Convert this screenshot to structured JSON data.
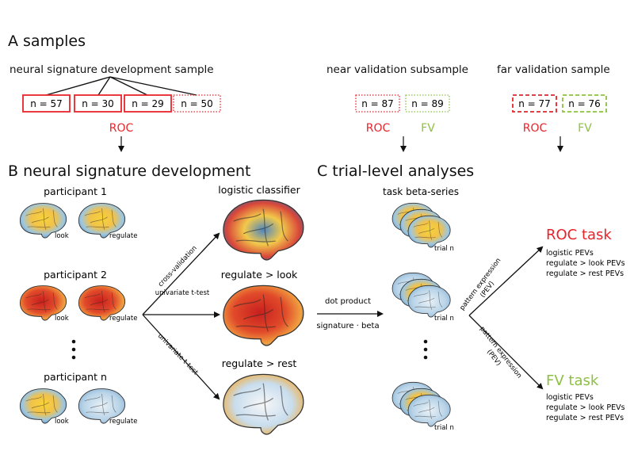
{
  "section_a": {
    "title": "A samples",
    "dev_label": "neural signature development sample",
    "dev_boxes": [
      "n = 57",
      "n = 30",
      "n = 29",
      "n = 50"
    ],
    "dev_task": "ROC",
    "near_label": "near validation subsample",
    "near_boxes": [
      "n = 87",
      "n = 89"
    ],
    "near_tasks": [
      "ROC",
      "FV"
    ],
    "far_label": "far validation sample",
    "far_boxes": [
      "n = 77",
      "n = 76"
    ],
    "far_tasks": [
      "ROC",
      "FV"
    ]
  },
  "section_b": {
    "title": "B neural signature development",
    "participants": [
      "participant 1",
      "participant 2",
      "participant n"
    ],
    "brain_labels": [
      "look",
      "regulate"
    ],
    "arrow_labels": [
      "cross-validation",
      "univariate t-test",
      "univariate t-test"
    ],
    "outputs": [
      "logistic classifier",
      "regulate > look",
      "regulate > rest"
    ]
  },
  "section_c": {
    "title": "C trial-level analyses",
    "series_label": "task beta-series",
    "trial_label": "trial n",
    "dot_product": "dot product",
    "dot_formula": "signature · beta",
    "pev_label_top": "pattern expression",
    "pev_label_bottom": "(PEV)",
    "roc_task": {
      "title": "ROC task",
      "items": [
        "logistic PEVs",
        "regulate > look PEVs",
        "regulate > rest PEVs"
      ]
    },
    "fv_task": {
      "title": "FV task",
      "items": [
        "logistic PEVs",
        "regulate > look PEVs",
        "regulate > rest PEVs"
      ]
    }
  },
  "colors": {
    "roc": "#e8232a",
    "fv": "#8dc044",
    "text": "#111111"
  }
}
